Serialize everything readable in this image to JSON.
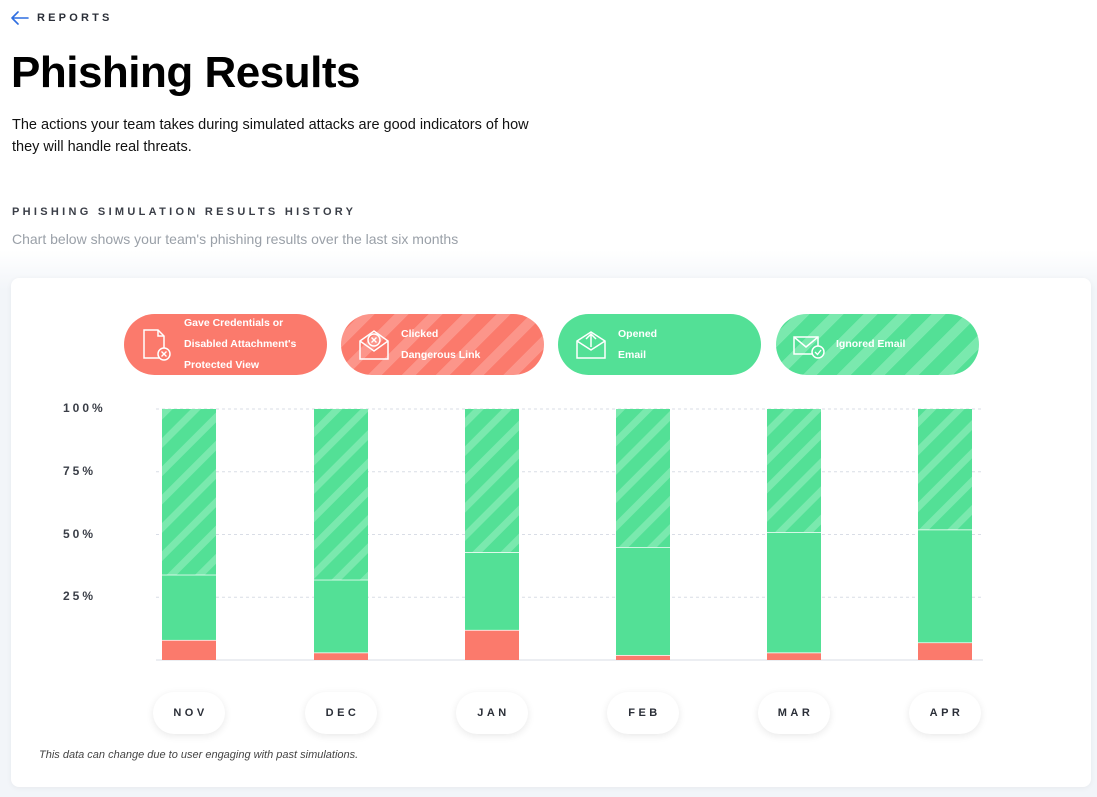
{
  "nav": {
    "back_label": "REPORTS"
  },
  "header": {
    "title": "Phishing Results",
    "description": "The actions your team takes during simulated attacks are good indicators of how\nthey will handle real threats."
  },
  "section": {
    "heading": "PHISHING SIMULATION RESULTS HISTORY",
    "subheading": "Chart below shows your team's phishing results over the last six months"
  },
  "legend": [
    {
      "label": "Gave Credentials or\nDisabled Attachment's\nProtected View",
      "icon": "document-x-icon",
      "color": "#fb7a6c",
      "striped": false
    },
    {
      "label": "Clicked\nDangerous Link",
      "icon": "envelope-x-icon",
      "color": "#fb7a6c",
      "striped": true
    },
    {
      "label": "Opened\nEmail",
      "icon": "envelope-open-icon",
      "color": "#53e096",
      "striped": false
    },
    {
      "label": "Ignored Email",
      "icon": "envelope-check-icon",
      "color": "#53e096",
      "striped": true
    }
  ],
  "colors": {
    "red": "#fb7a6c",
    "green": "#53e096",
    "grid": "#d9dde6"
  },
  "chart_data": {
    "type": "bar",
    "stacked": true,
    "categories": [
      "NOV",
      "DEC",
      "JAN",
      "FEB",
      "MAR",
      "APR"
    ],
    "y_tick_labels": [
      "100%",
      "75%",
      "50%",
      "25%"
    ],
    "ylim": [
      0,
      100
    ],
    "grid": true,
    "legend_position": "top",
    "series": [
      {
        "name": "Gave Credentials or Disabled Attachment's Protected View",
        "values": [
          8,
          3,
          12,
          2,
          3,
          7
        ]
      },
      {
        "name": "Clicked Dangerous Link",
        "values": [
          0,
          0,
          0,
          0,
          0,
          0
        ]
      },
      {
        "name": "Opened Email",
        "values": [
          26,
          29,
          31,
          43,
          48,
          45
        ]
      },
      {
        "name": "Ignored Email",
        "values": [
          66,
          68,
          57,
          55,
          49,
          48
        ]
      }
    ]
  },
  "footnote": "This data can change due to user engaging with past simulations."
}
